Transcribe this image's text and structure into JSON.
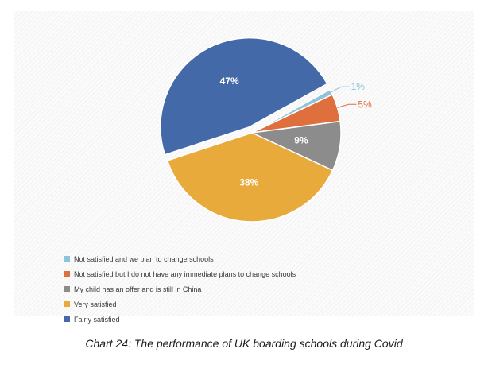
{
  "chart_data": {
    "type": "pie",
    "title": "Chart 24: The performance of UK boarding schools during Covid",
    "legend_position": "bottom-left",
    "slices": [
      {
        "label": "Not satisfied and we plan to change schools",
        "value": 1,
        "value_label": "1%",
        "color": "#8ec3d9"
      },
      {
        "label": "Not satisfied but I do not have any immediate plans to change schools",
        "value": 5,
        "value_label": "5%",
        "color": "#df6f3d"
      },
      {
        "label": "My child has an offer and is still in China",
        "value": 9,
        "value_label": "9%",
        "color": "#8c8c8c"
      },
      {
        "label": "Very satisfied",
        "value": 38,
        "value_label": "38%",
        "color": "#e8ab3b"
      },
      {
        "label": "Fairly satisfied",
        "value": 47,
        "value_label": "47%",
        "color": "#4369a8"
      }
    ]
  }
}
